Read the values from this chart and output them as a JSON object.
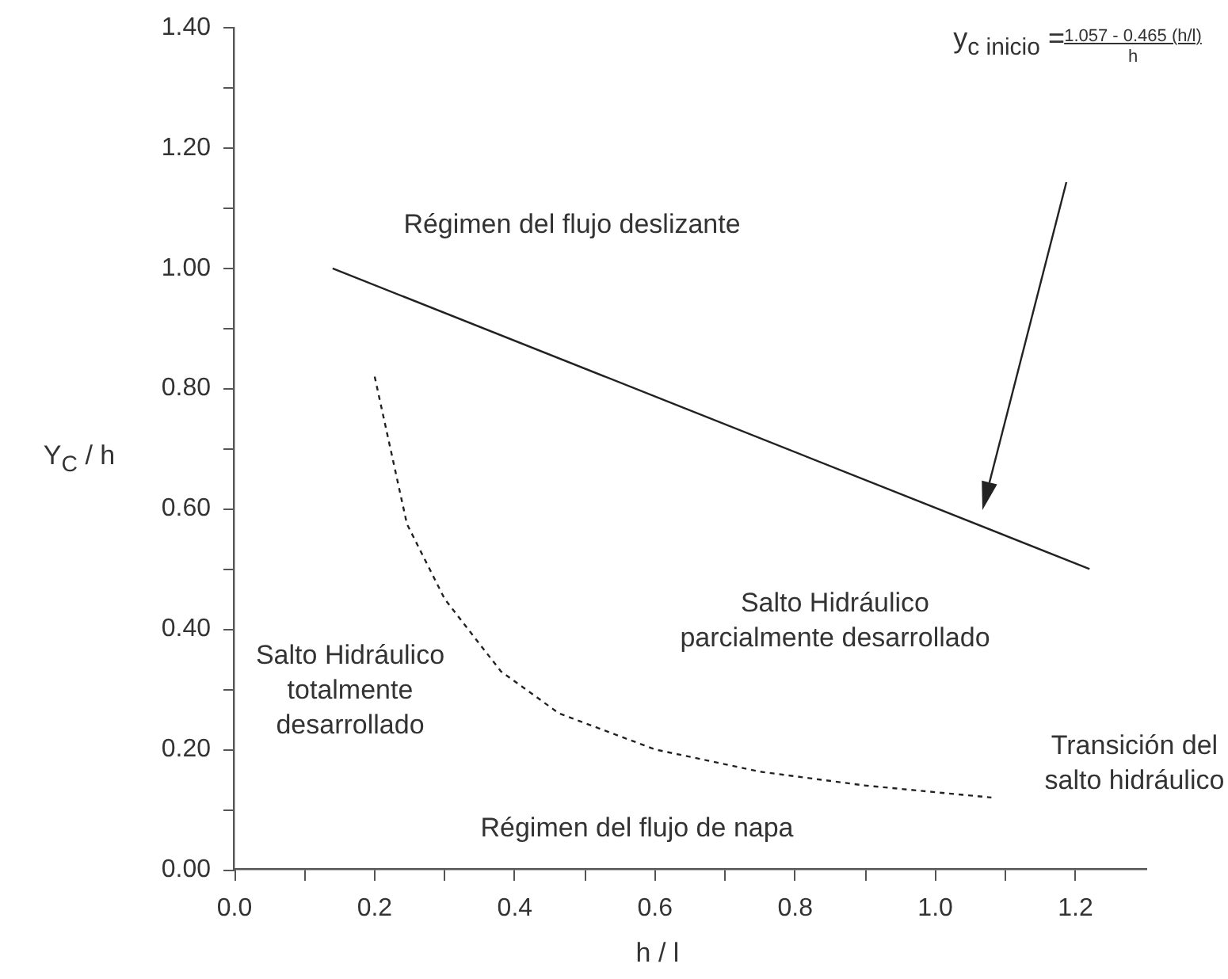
{
  "chart_data": {
    "type": "line",
    "xlabel": "h / l",
    "ylabel": "Y$_{C}$ / h",
    "xlim": [
      0,
      1.3
    ],
    "xticks": [
      {
        "value": 0,
        "label": "0.0"
      },
      {
        "value": 0.1,
        "label": null
      },
      {
        "value": 0.2,
        "label": "0.2"
      },
      {
        "value": 0.3,
        "label": null
      },
      {
        "value": 0.4,
        "label": "0.4"
      },
      {
        "value": 0.5,
        "label": null
      },
      {
        "value": 0.6,
        "label": "0.6"
      },
      {
        "value": 0.7,
        "label": null
      },
      {
        "value": 0.8,
        "label": "0.8"
      },
      {
        "value": 0.9,
        "label": null
      },
      {
        "value": 1,
        "label": "1.0"
      },
      {
        "value": 1.1,
        "label": null
      },
      {
        "value": 1.2,
        "label": "1.2"
      }
    ],
    "ylim": [
      0,
      1.4
    ],
    "yticks": [
      {
        "value": 0,
        "label": "0.00"
      },
      {
        "value": 0.1,
        "label": null
      },
      {
        "value": 0.2,
        "label": "0.20"
      },
      {
        "value": 0.3,
        "label": null
      },
      {
        "value": 0.4,
        "label": "0.40"
      },
      {
        "value": 0.5,
        "label": null
      },
      {
        "value": 0.6,
        "label": "0.60"
      },
      {
        "value": 0.7,
        "label": null
      },
      {
        "value": 0.8,
        "label": "0.80"
      },
      {
        "value": 0.9,
        "label": null
      },
      {
        "value": 1,
        "label": "1.00"
      },
      {
        "value": 1.1,
        "label": null
      },
      {
        "value": 1.2,
        "label": "1.20"
      },
      {
        "value": 1.3,
        "label": null
      },
      {
        "value": 1.4,
        "label": "1.40"
      }
    ],
    "grid": false,
    "legend": false,
    "marker": "none",
    "series": [
      {
        "color": "#222222",
        "line_style": "solid",
        "x": [
          0.14,
          1.22
        ],
        "values": [
          1.0,
          0.5
        ]
      },
      {
        "color": "#222222",
        "line_style": "dashed",
        "x": [
          0.2,
          0.246,
          0.3,
          0.38,
          0.463,
          0.6,
          0.75,
          0.9,
          1.08
        ],
        "values": [
          0.82,
          0.575,
          0.45,
          0.33,
          0.26,
          0.2,
          0.163,
          0.14,
          0.12
        ]
      }
    ],
    "annotations": [
      "y$_{c inicio}$ =",
      "1.057 - 0.465 (h/l)",
      "h",
      "Régimen del flujo deslizante",
      "Salto Hidráulico\nparcialmente desarrollado",
      "Salto Hidráulico\ntotalmente\ndesarrollado",
      "Transición del\nsalto hidráulico",
      "Régimen del flujo de napa"
    ]
  }
}
